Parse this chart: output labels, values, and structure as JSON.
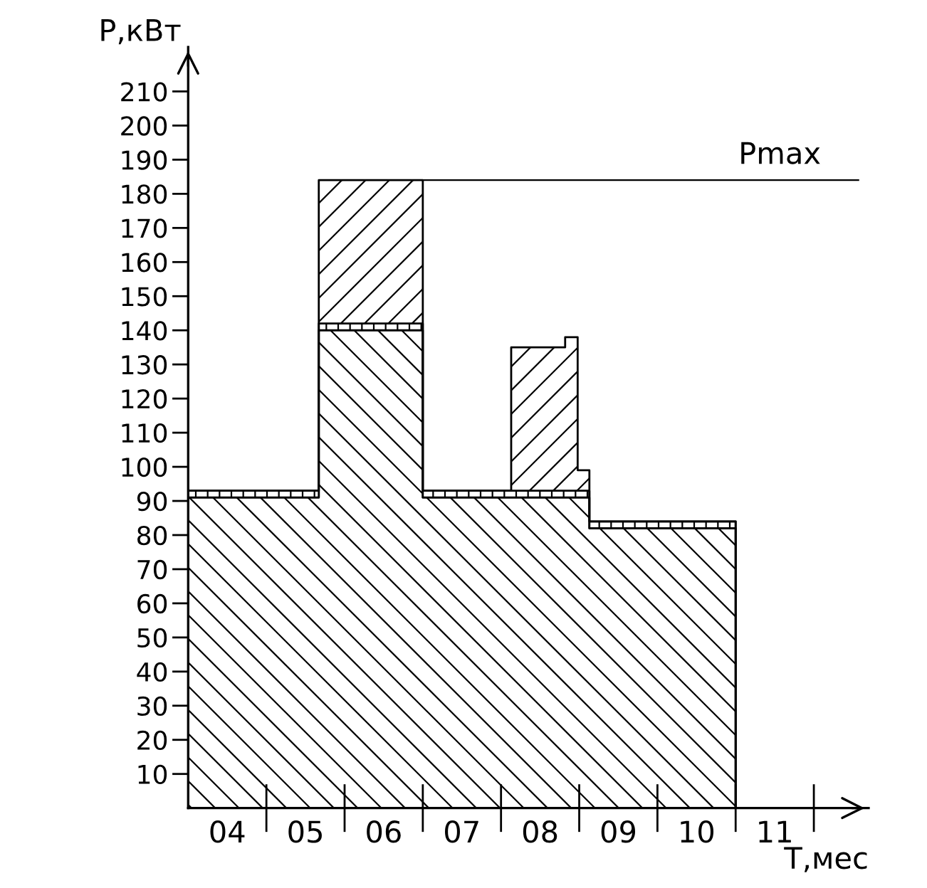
{
  "chart_data": {
    "type": "area",
    "stacked": true,
    "ylabel": "P,кВт",
    "xlabel": "T,мес",
    "x": [
      3.5,
      5.17,
      5.17,
      6.5,
      6.5,
      7.63,
      7.63,
      8.32,
      8.32,
      8.48,
      8.48,
      8.63,
      8.63,
      10.5,
      10.5
    ],
    "series": [
      {
        "color": "#000000",
        "values": [
          91,
          91,
          140,
          140,
          91,
          91,
          91,
          91,
          91,
          91,
          91,
          91,
          82,
          82,
          0
        ]
      },
      {
        "color": "#000000",
        "values": [
          2,
          2,
          2,
          2,
          2,
          2,
          2,
          2,
          2,
          2,
          2,
          2,
          2,
          2,
          0
        ]
      },
      {
        "color": "#000000",
        "values": [
          0,
          0,
          42,
          42,
          0,
          0,
          42,
          42,
          45,
          45,
          6,
          6,
          0,
          0,
          0
        ]
      }
    ],
    "xlim": [
      3.5,
      12.2
    ],
    "xticks": [
      {
        "value": 4,
        "label": "04"
      },
      {
        "value": 5,
        "label": "05"
      },
      {
        "value": 6,
        "label": "06"
      },
      {
        "value": 7,
        "label": "07"
      },
      {
        "value": 8,
        "label": "08"
      },
      {
        "value": 9,
        "label": "09"
      },
      {
        "value": 10,
        "label": "10"
      },
      {
        "value": 11,
        "label": "11"
      }
    ],
    "ylim": [
      0,
      223
    ],
    "yticks": [
      10,
      20,
      30,
      40,
      50,
      60,
      70,
      80,
      90,
      100,
      110,
      120,
      130,
      140,
      150,
      160,
      170,
      180,
      190,
      200,
      210
    ],
    "ref_lines": [
      {
        "axis": "y",
        "value": 184,
        "label": "Pmax",
        "color": "#000000"
      }
    ],
    "grid": false,
    "legend": false
  }
}
